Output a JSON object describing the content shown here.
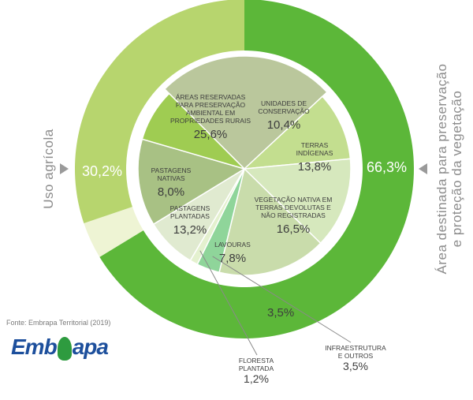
{
  "chart_data": {
    "type": "pie",
    "outer_ring": [
      {
        "label": "Área destinada para preservação e proteção da vegetação",
        "value": 66.3,
        "text": "66,3%",
        "color": "#5cb739"
      },
      {
        "label": "",
        "value": 3.5,
        "text": "3,5%",
        "color": "#eef4d4"
      },
      {
        "label": "Uso agrícola",
        "value": 30.2,
        "text": "30,2%",
        "color": "#b7d56e"
      }
    ],
    "inner_pie": [
      {
        "name": "ÁREAS RESERVADAS\nPARA PRESERVAÇÃO\nAMBIENTAL EM\nPROPRIEDADES RURAIS",
        "value": 25.6,
        "text": "25,6%",
        "color": "#bac79c"
      },
      {
        "name": "UNIDADES DE\nCONSERVAÇÃO",
        "value": 10.4,
        "text": "10,4%",
        "color": "#c3de8f"
      },
      {
        "name": "TERRAS\nINDÍGENAS",
        "value": 13.8,
        "text": "13,8%",
        "color": "#d6e8bd"
      },
      {
        "name": "VEGETAÇÃO NATIVA EM\nTERRAS DEVOLUTAS E\nNÃO REGISTRADAS",
        "value": 16.5,
        "text": "16,5%",
        "color": "#c9dcab"
      },
      {
        "name": "INFRAESTRUTURA\nE OUTROS",
        "value": 3.5,
        "text": "3,5%",
        "color": "#8fd59a"
      },
      {
        "name": "FLORESTA\nPLANTADA",
        "value": 1.2,
        "text": "1,2%",
        "color": "#e4f1cf"
      },
      {
        "name": "LAVOURAS",
        "value": 7.8,
        "text": "7,8%",
        "color": "#e0ead0"
      },
      {
        "name": "PASTAGENS\nPLANTADAS",
        "value": 13.2,
        "text": "13,2%",
        "color": "#a8c184"
      },
      {
        "name": "PASTAGENS\nNATIVAS",
        "value": 8.0,
        "text": "8,0%",
        "color": "#9fcc52"
      }
    ]
  },
  "labels": {
    "left": "Uso agrícola",
    "right_line1": "Área destinada para preservação",
    "right_line2": "e proteção da vegetação"
  },
  "source": "Fonte: Embrapa Territorial (2019)",
  "logo": {
    "part1": "Emb",
    "part2": "apa"
  }
}
